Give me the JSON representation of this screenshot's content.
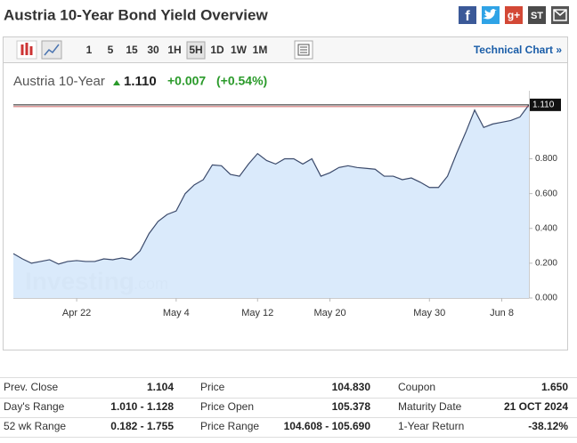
{
  "header": {
    "title": "Austria 10-Year Bond Yield Overview",
    "social": [
      "f",
      "g+",
      "ST"
    ]
  },
  "toolbar": {
    "intervals": [
      "1",
      "5",
      "15",
      "30",
      "1H",
      "5H",
      "1D",
      "1W",
      "1M"
    ],
    "link": "Technical Chart »"
  },
  "quote": {
    "name": "Austria 10-Year",
    "last": "1.110",
    "change": "+0.007",
    "change_pct": "(+0.54%)"
  },
  "chart_data": {
    "type": "area",
    "color": "#3b4a6b",
    "fill": "#d6e8fb",
    "watermark": [
      "Investing",
      ".com"
    ],
    "last_label": "1.110",
    "categories": [
      null,
      null,
      null,
      null,
      null,
      null,
      null,
      "Apr 22",
      null,
      null,
      null,
      null,
      null,
      null,
      null,
      null,
      null,
      null,
      "May 4",
      null,
      null,
      null,
      null,
      null,
      null,
      null,
      null,
      "May 12",
      null,
      null,
      null,
      null,
      null,
      null,
      null,
      "May 20",
      null,
      null,
      null,
      null,
      null,
      null,
      null,
      null,
      null,
      null,
      "May 30",
      null,
      null,
      null,
      null,
      null,
      null,
      null,
      "Jun 8",
      null,
      null,
      null
    ],
    "values": [
      0.255,
      0.225,
      0.2,
      0.21,
      0.22,
      0.195,
      0.21,
      0.215,
      0.21,
      0.21,
      0.225,
      0.22,
      0.23,
      0.22,
      0.27,
      0.37,
      0.44,
      0.48,
      0.5,
      0.6,
      0.65,
      0.68,
      0.765,
      0.76,
      0.71,
      0.7,
      0.77,
      0.83,
      0.79,
      0.77,
      0.8,
      0.8,
      0.77,
      0.8,
      0.7,
      0.72,
      0.75,
      0.76,
      0.75,
      0.745,
      0.74,
      0.7,
      0.7,
      0.68,
      0.69,
      0.665,
      0.635,
      0.635,
      0.7,
      0.83,
      0.95,
      1.08,
      0.98,
      1.0,
      1.01,
      1.02,
      1.04,
      1.11
    ],
    "ylim": [
      0,
      1.14
    ],
    "yticks": [
      {
        "value": 0,
        "label": "0.000"
      },
      {
        "value": 0.2,
        "label": "0.200"
      },
      {
        "value": 0.4,
        "label": "0.400"
      },
      {
        "value": 0.6,
        "label": "0.600"
      },
      {
        "value": 0.8,
        "label": "0.800"
      }
    ]
  },
  "table": {
    "rows": [
      [
        "Prev. Close",
        "1.104",
        "Price",
        "104.830",
        "Coupon",
        "1.650"
      ],
      [
        "Day's Range",
        "1.010 - 1.128",
        "Price Open",
        "105.378",
        "Maturity Date",
        "21 OCT 2024"
      ],
      [
        "52 wk Range",
        "0.182 - 1.755",
        "Price Range",
        "104.608 - 105.690",
        "1-Year Return",
        "-38.12%"
      ]
    ]
  }
}
